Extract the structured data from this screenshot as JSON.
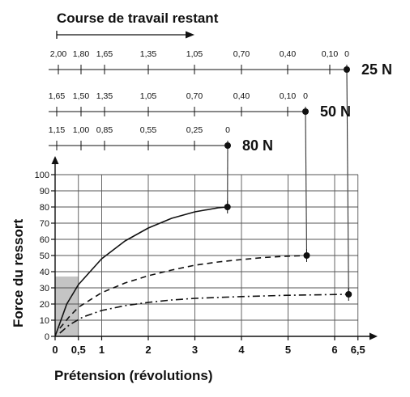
{
  "chart_data": {
    "type": "line",
    "title": "Course de travail restant",
    "xlabel": "Prétension (révolutions)",
    "ylabel": "Force du ressort",
    "xlim": [
      0,
      6.5
    ],
    "ylim": [
      0,
      100
    ],
    "x_ticks": [
      "0",
      "0,5",
      "1",
      "2",
      "3",
      "4",
      "5",
      "6",
      "6,5"
    ],
    "y_ticks": [
      "0",
      "10",
      "20",
      "30",
      "40",
      "50",
      "60",
      "70",
      "80",
      "90",
      "100"
    ],
    "grid": true,
    "shaded_region": {
      "x": [
        0,
        0.5
      ],
      "y": [
        0,
        37
      ]
    },
    "series": [
      {
        "name": "80 N",
        "line_style": "solid",
        "end_point": [
          3.7,
          80
        ],
        "points": [
          [
            0,
            0
          ],
          [
            0.25,
            20
          ],
          [
            0.5,
            32
          ],
          [
            1,
            48
          ],
          [
            1.5,
            59
          ],
          [
            2,
            67
          ],
          [
            2.5,
            73
          ],
          [
            3,
            77
          ],
          [
            3.5,
            79.5
          ],
          [
            3.7,
            80
          ]
        ],
        "stroke_scale": [
          "1,15",
          "1,00",
          "0,85",
          "0,55",
          "0,25",
          "0"
        ]
      },
      {
        "name": "50 N",
        "line_style": "dashed",
        "end_point": [
          5.4,
          50
        ],
        "points": [
          [
            0.1,
            5
          ],
          [
            0.3,
            12
          ],
          [
            0.5,
            18
          ],
          [
            1,
            27
          ],
          [
            1.5,
            33
          ],
          [
            2,
            37.5
          ],
          [
            2.5,
            41
          ],
          [
            3,
            44
          ],
          [
            3.5,
            46
          ],
          [
            4,
            47.5
          ],
          [
            4.5,
            48.8
          ],
          [
            5,
            49.6
          ],
          [
            5.4,
            50
          ]
        ],
        "stroke_scale": [
          "1,65",
          "1,50",
          "1,35",
          "1,05",
          "0,70",
          "0,40",
          "0,10",
          "0"
        ]
      },
      {
        "name": "25 N",
        "line_style": "dash-dot",
        "end_point": [
          6.3,
          26
        ],
        "points": [
          [
            0.1,
            2
          ],
          [
            0.3,
            7
          ],
          [
            0.6,
            12
          ],
          [
            1,
            16
          ],
          [
            1.5,
            19
          ],
          [
            2,
            21
          ],
          [
            2.5,
            22.5
          ],
          [
            3,
            23.5
          ],
          [
            4,
            24.6
          ],
          [
            5,
            25.4
          ],
          [
            6.3,
            26
          ]
        ],
        "stroke_scale": [
          "2,00",
          "1,80",
          "1,65",
          "1,35",
          "1,05",
          "0,70",
          "0,40",
          "0,10",
          "0"
        ]
      }
    ]
  }
}
